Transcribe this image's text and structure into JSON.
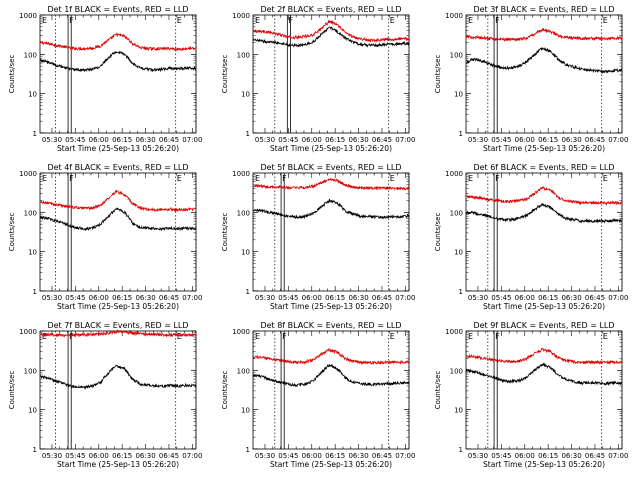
{
  "colors": {
    "events": "#000000",
    "lld": "#dd0000",
    "frame": "#000000"
  },
  "shared": {
    "xlabel": "Start Time (25-Sep-13 05:26:20)",
    "ylabel": "Counts/sec",
    "x_tick_labels": [
      "05:30",
      "05:45",
      "06:00",
      "06:15",
      "06:30",
      "06:45",
      "07:00"
    ],
    "y_tick_labels": [
      "1",
      "10",
      "100",
      "1000"
    ],
    "marker_letters": [
      "E",
      "F",
      "F",
      "E"
    ]
  },
  "chart_data": [
    {
      "type": "line",
      "title": "Det 1f BLACK = Events, RED = LLD",
      "xlabel": "Start Time (25-Sep-13 05:26:20)",
      "ylabel": "Counts/sec",
      "x_range_min": [
        -4,
        96
      ],
      "y_log_range": [
        1,
        1000
      ],
      "grid": false,
      "markers_min": [
        6,
        14,
        16,
        83,
        96
      ],
      "series": [
        {
          "name": "LLD",
          "x_min": [
            -4,
            0,
            5,
            10,
            15,
            20,
            25,
            30,
            35,
            40,
            45,
            50,
            55,
            60,
            65,
            70,
            75,
            80,
            85,
            90,
            96
          ],
          "values": [
            200,
            190,
            175,
            160,
            145,
            140,
            140,
            145,
            165,
            230,
            320,
            290,
            190,
            150,
            140,
            138,
            140,
            140,
            135,
            140,
            140
          ]
        },
        {
          "name": "Events",
          "x_min": [
            -4,
            0,
            5,
            10,
            15,
            20,
            25,
            30,
            35,
            40,
            45,
            50,
            55,
            60,
            65,
            70,
            75,
            80,
            85,
            90,
            96
          ],
          "values": [
            70,
            65,
            55,
            48,
            42,
            40,
            40,
            42,
            50,
            80,
            120,
            100,
            60,
            45,
            42,
            40,
            42,
            45,
            42,
            45,
            45
          ]
        }
      ]
    },
    {
      "type": "line",
      "title": "Det 2f BLACK = Events, RED = LLD",
      "xlabel": "Start Time (25-Sep-13 05:26:20)",
      "ylabel": "Counts/sec",
      "x_range_min": [
        -4,
        96
      ],
      "y_log_range": [
        1,
        1000
      ],
      "grid": false,
      "markers_min": [
        10,
        18,
        20,
        83,
        96
      ],
      "series": [
        {
          "name": "LLD",
          "x_min": [
            -4,
            0,
            5,
            10,
            15,
            20,
            25,
            30,
            35,
            40,
            45,
            50,
            55,
            60,
            65,
            70,
            75,
            80,
            85,
            90,
            96
          ],
          "values": [
            400,
            390,
            370,
            340,
            300,
            270,
            270,
            290,
            320,
            460,
            680,
            560,
            360,
            280,
            250,
            230,
            230,
            240,
            240,
            250,
            250
          ]
        },
        {
          "name": "Events",
          "x_min": [
            -4,
            0,
            5,
            10,
            15,
            20,
            25,
            30,
            35,
            40,
            45,
            50,
            55,
            60,
            65,
            70,
            75,
            80,
            85,
            90,
            96
          ],
          "values": [
            230,
            220,
            210,
            200,
            190,
            170,
            170,
            175,
            210,
            320,
            480,
            380,
            260,
            200,
            180,
            170,
            170,
            180,
            180,
            185,
            190
          ]
        }
      ]
    },
    {
      "type": "line",
      "title": "Det 3f BLACK = Events, RED = LLD",
      "xlabel": "Start Time (25-Sep-13 05:26:20)",
      "ylabel": "Counts/sec",
      "x_range_min": [
        -4,
        96
      ],
      "y_log_range": [
        1,
        1000
      ],
      "grid": false,
      "markers_min": [
        10,
        14,
        16,
        83,
        96
      ],
      "series": [
        {
          "name": "LLD",
          "x_min": [
            -4,
            0,
            5,
            10,
            15,
            20,
            25,
            30,
            35,
            40,
            45,
            50,
            55,
            60,
            65,
            70,
            75,
            80,
            85,
            90,
            96
          ],
          "values": [
            280,
            275,
            265,
            255,
            245,
            240,
            240,
            245,
            260,
            330,
            420,
            380,
            300,
            270,
            260,
            255,
            255,
            255,
            255,
            255,
            255
          ]
        },
        {
          "name": "Events",
          "x_min": [
            -4,
            0,
            5,
            10,
            15,
            20,
            25,
            30,
            35,
            40,
            45,
            50,
            55,
            60,
            65,
            70,
            75,
            80,
            85,
            90,
            96
          ],
          "values": [
            60,
            75,
            70,
            60,
            50,
            45,
            45,
            50,
            65,
            95,
            145,
            120,
            75,
            55,
            48,
            42,
            40,
            38,
            36,
            38,
            40
          ]
        }
      ]
    },
    {
      "type": "line",
      "title": "Det 4f BLACK = Events, RED = LLD",
      "xlabel": "Start Time (25-Sep-13 05:26:20)",
      "ylabel": "Counts/sec",
      "x_range_min": [
        -4,
        96
      ],
      "y_log_range": [
        1,
        1000
      ],
      "grid": false,
      "markers_min": [
        6,
        14,
        16,
        83,
        96
      ],
      "series": [
        {
          "name": "LLD",
          "x_min": [
            -4,
            0,
            5,
            10,
            15,
            20,
            25,
            30,
            35,
            40,
            45,
            50,
            55,
            60,
            65,
            70,
            75,
            80,
            85,
            90,
            96
          ],
          "values": [
            180,
            175,
            160,
            150,
            140,
            130,
            125,
            130,
            150,
            230,
            340,
            280,
            170,
            130,
            120,
            115,
            120,
            120,
            115,
            120,
            120
          ]
        },
        {
          "name": "Events",
          "x_min": [
            -4,
            0,
            5,
            10,
            15,
            20,
            25,
            30,
            35,
            40,
            45,
            50,
            55,
            60,
            65,
            70,
            75,
            80,
            85,
            90,
            96
          ],
          "values": [
            75,
            72,
            62,
            55,
            45,
            40,
            38,
            40,
            50,
            80,
            125,
            100,
            55,
            42,
            40,
            38,
            38,
            40,
            38,
            40,
            38
          ]
        }
      ]
    },
    {
      "type": "line",
      "title": "Det 5f BLACK = Events, RED = LLD",
      "xlabel": "Start Time (25-Sep-13 05:26:20)",
      "ylabel": "Counts/sec",
      "x_range_min": [
        -4,
        96
      ],
      "y_log_range": [
        1,
        1000
      ],
      "grid": false,
      "markers_min": [
        10,
        14,
        16,
        83,
        96
      ],
      "series": [
        {
          "name": "LLD",
          "x_min": [
            -4,
            0,
            5,
            10,
            15,
            20,
            25,
            30,
            35,
            40,
            45,
            50,
            55,
            60,
            65,
            70,
            75,
            80,
            85,
            90,
            96
          ],
          "values": [
            480,
            470,
            455,
            440,
            430,
            420,
            420,
            430,
            460,
            560,
            700,
            640,
            500,
            440,
            420,
            410,
            410,
            410,
            410,
            410,
            410
          ]
        },
        {
          "name": "Events",
          "x_min": [
            -4,
            0,
            5,
            10,
            15,
            20,
            25,
            30,
            35,
            40,
            45,
            50,
            55,
            60,
            65,
            70,
            75,
            80,
            85,
            90,
            96
          ],
          "values": [
            110,
            115,
            105,
            95,
            85,
            78,
            75,
            80,
            95,
            140,
            200,
            170,
            110,
            90,
            80,
            78,
            76,
            76,
            75,
            78,
            80
          ]
        }
      ]
    },
    {
      "type": "line",
      "title": "Det 6f BLACK = Events, RED = LLD",
      "xlabel": "Start Time (25-Sep-13 05:26:20)",
      "ylabel": "Counts/sec",
      "x_range_min": [
        -4,
        96
      ],
      "y_log_range": [
        1,
        1000
      ],
      "grid": false,
      "markers_min": [
        10,
        14,
        16,
        83,
        96
      ],
      "series": [
        {
          "name": "LLD",
          "x_min": [
            -4,
            0,
            5,
            10,
            15,
            20,
            25,
            30,
            35,
            40,
            45,
            50,
            55,
            60,
            65,
            70,
            75,
            80,
            85,
            90,
            96
          ],
          "values": [
            250,
            245,
            230,
            215,
            200,
            190,
            190,
            200,
            220,
            300,
            420,
            360,
            240,
            200,
            185,
            175,
            175,
            175,
            175,
            175,
            175
          ]
        },
        {
          "name": "Events",
          "x_min": [
            -4,
            0,
            5,
            10,
            15,
            20,
            25,
            30,
            35,
            40,
            45,
            50,
            55,
            60,
            65,
            70,
            75,
            80,
            85,
            90,
            96
          ],
          "values": [
            100,
            98,
            90,
            80,
            70,
            65,
            65,
            70,
            85,
            120,
            160,
            135,
            90,
            70,
            65,
            60,
            60,
            60,
            60,
            62,
            62
          ]
        }
      ]
    },
    {
      "type": "line",
      "title": "Det 7f BLACK = Events, RED = LLD",
      "xlabel": "Start Time (25-Sep-13 05:26:20)",
      "ylabel": "Counts/sec",
      "x_range_min": [
        -4,
        96
      ],
      "y_log_range": [
        1,
        1000
      ],
      "grid": false,
      "markers_min": [
        6,
        14,
        16,
        83,
        96
      ],
      "series": [
        {
          "name": "LLD",
          "x_min": [
            -4,
            0,
            5,
            10,
            15,
            20,
            25,
            30,
            35,
            40,
            45,
            50,
            55,
            60,
            65,
            70,
            75,
            80,
            85,
            90,
            96
          ],
          "values": [
            820,
            810,
            800,
            790,
            780,
            790,
            800,
            820,
            850,
            900,
            960,
            940,
            880,
            850,
            830,
            820,
            810,
            800,
            790,
            780,
            780
          ]
        },
        {
          "name": "Events",
          "x_min": [
            -4,
            0,
            5,
            10,
            15,
            20,
            25,
            30,
            35,
            40,
            45,
            50,
            55,
            60,
            65,
            70,
            75,
            80,
            85,
            90,
            96
          ],
          "values": [
            70,
            65,
            55,
            48,
            40,
            38,
            37,
            40,
            50,
            85,
            130,
            110,
            60,
            45,
            42,
            40,
            40,
            42,
            40,
            42,
            42
          ]
        }
      ]
    },
    {
      "type": "line",
      "title": "Det 8f BLACK = Events, RED = LLD",
      "xlabel": "Start Time (25-Sep-13 05:26:20)",
      "ylabel": "Counts/sec",
      "x_range_min": [
        -4,
        96
      ],
      "y_log_range": [
        1,
        1000
      ],
      "grid": false,
      "markers_min": [
        10,
        14,
        16,
        83,
        96
      ],
      "series": [
        {
          "name": "LLD",
          "x_min": [
            -4,
            0,
            5,
            10,
            15,
            20,
            25,
            30,
            35,
            40,
            45,
            50,
            55,
            60,
            65,
            70,
            75,
            80,
            85,
            90,
            96
          ],
          "values": [
            220,
            215,
            200,
            190,
            175,
            165,
            160,
            165,
            190,
            260,
            330,
            290,
            200,
            170,
            160,
            155,
            155,
            160,
            160,
            160,
            165
          ]
        },
        {
          "name": "Events",
          "x_min": [
            -4,
            0,
            5,
            10,
            15,
            20,
            25,
            30,
            35,
            40,
            45,
            50,
            55,
            60,
            65,
            70,
            75,
            80,
            85,
            90,
            96
          ],
          "values": [
            75,
            72,
            62,
            55,
            48,
            44,
            42,
            45,
            55,
            90,
            135,
            110,
            65,
            50,
            46,
            44,
            44,
            46,
            46,
            48,
            48
          ]
        }
      ]
    },
    {
      "type": "line",
      "title": "Det 9f BLACK = Events, RED = LLD",
      "xlabel": "Start Time (25-Sep-13 05:26:20)",
      "ylabel": "Counts/sec",
      "x_range_min": [
        -4,
        96
      ],
      "y_log_range": [
        1,
        1000
      ],
      "grid": false,
      "markers_min": [
        10,
        14,
        16,
        83,
        96
      ],
      "series": [
        {
          "name": "LLD",
          "x_min": [
            -4,
            0,
            5,
            10,
            15,
            20,
            25,
            30,
            35,
            40,
            45,
            50,
            55,
            60,
            65,
            70,
            75,
            80,
            85,
            90,
            96
          ],
          "values": [
            230,
            225,
            210,
            195,
            180,
            170,
            165,
            170,
            200,
            270,
            340,
            300,
            210,
            180,
            165,
            160,
            160,
            160,
            158,
            160,
            160
          ]
        },
        {
          "name": "Events",
          "x_min": [
            -4,
            0,
            5,
            10,
            15,
            20,
            25,
            30,
            35,
            40,
            45,
            50,
            55,
            60,
            65,
            70,
            75,
            80,
            85,
            90,
            96
          ],
          "values": [
            100,
            95,
            85,
            72,
            62,
            55,
            52,
            55,
            65,
            100,
            140,
            120,
            75,
            58,
            52,
            48,
            48,
            48,
            46,
            48,
            48
          ]
        }
      ]
    }
  ]
}
